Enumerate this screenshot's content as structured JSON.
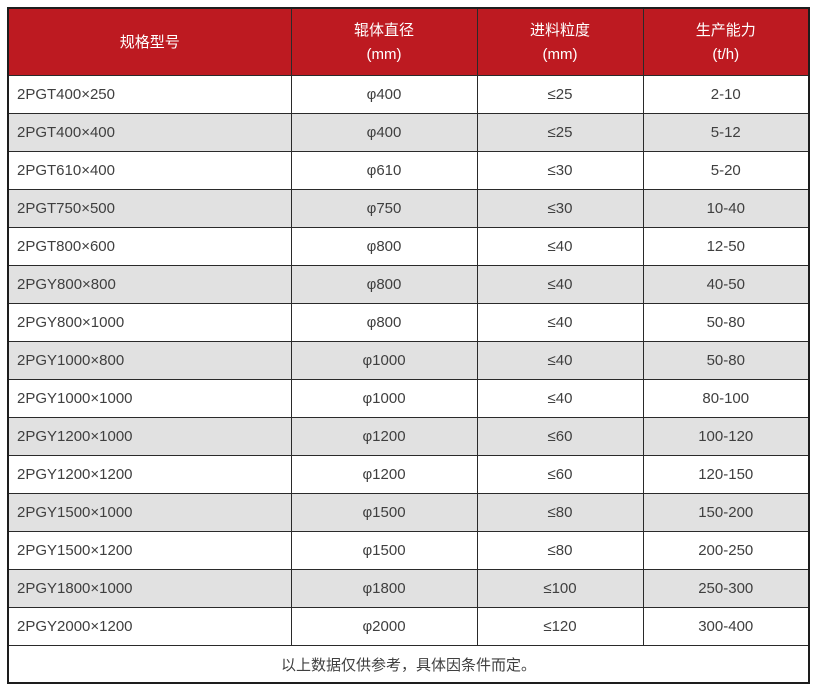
{
  "chart_data": {
    "type": "table",
    "title": "",
    "columns": [
      {
        "label": "规格型号",
        "unit": ""
      },
      {
        "label": "辊体直径",
        "unit": "(mm)"
      },
      {
        "label": "进料粒度",
        "unit": "(mm)"
      },
      {
        "label": "生产能力",
        "unit": "(t/h)"
      }
    ],
    "rows": [
      [
        "2PGT400×250",
        "φ400",
        "≤25",
        "2-10"
      ],
      [
        "2PGT400×400",
        "φ400",
        "≤25",
        "5-12"
      ],
      [
        "2PGT610×400",
        "φ610",
        "≤30",
        "5-20"
      ],
      [
        "2PGT750×500",
        "φ750",
        "≤30",
        "10-40"
      ],
      [
        "2PGT800×600",
        "φ800",
        "≤40",
        "12-50"
      ],
      [
        "2PGY800×800",
        "φ800",
        "≤40",
        "40-50"
      ],
      [
        "2PGY800×1000",
        "φ800",
        "≤40",
        "50-80"
      ],
      [
        "2PGY1000×800",
        "φ1000",
        "≤40",
        "50-80"
      ],
      [
        "2PGY1000×1000",
        "φ1000",
        "≤40",
        "80-100"
      ],
      [
        "2PGY1200×1000",
        "φ1200",
        "≤60",
        "100-120"
      ],
      [
        "2PGY1200×1200",
        "φ1200",
        "≤60",
        "120-150"
      ],
      [
        "2PGY1500×1000",
        "φ1500",
        "≤80",
        "150-200"
      ],
      [
        "2PGY1500×1200",
        "φ1500",
        "≤80",
        "200-250"
      ],
      [
        "2PGY1800×1000",
        "φ1800",
        "≤100",
        "250-300"
      ],
      [
        "2PGY2000×1200",
        "φ2000",
        "≤120",
        "300-400"
      ]
    ],
    "footnote": "以上数据仅供参考，具体因条件而定。"
  },
  "colors": {
    "header_bg": "#bd1a21",
    "header_text": "#ffffff",
    "row_bg": "#ffffff",
    "row_alt_bg": "#e1e1e1",
    "border": "#2a2a2a",
    "outer_border": "#1d1d1d",
    "body_text": "#3f3f3f"
  }
}
